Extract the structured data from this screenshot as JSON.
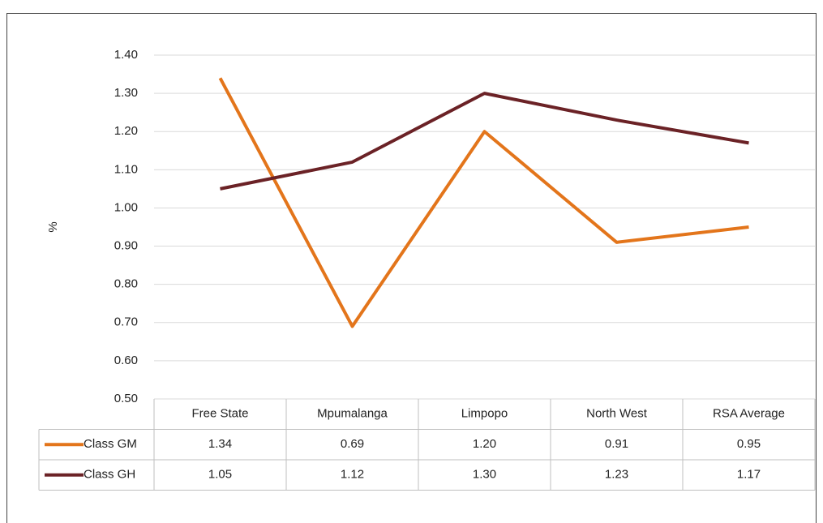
{
  "chart_data": {
    "type": "line",
    "ylabel": "%",
    "categories": [
      "Free State",
      "Mpumalanga",
      "Limpopo",
      "North West",
      "RSA Average"
    ],
    "series": [
      {
        "name": "Class GM",
        "color": "#e3751b",
        "values": [
          1.34,
          0.69,
          1.2,
          0.91,
          0.95
        ],
        "value_labels": [
          "1.34",
          "0.69",
          "1.20",
          "0.91",
          "0.95"
        ]
      },
      {
        "name": "Class GH",
        "color": "#6b2226",
        "values": [
          1.05,
          1.12,
          1.3,
          1.23,
          1.17
        ],
        "value_labels": [
          "1.05",
          "1.12",
          "1.30",
          "1.23",
          "1.17"
        ]
      }
    ],
    "ylim": [
      0.5,
      1.4
    ],
    "yticks": [
      {
        "value": 0.5,
        "label": "0.50"
      },
      {
        "value": 0.6,
        "label": "0.60"
      },
      {
        "value": 0.7,
        "label": "0.70"
      },
      {
        "value": 0.8,
        "label": "0.80"
      },
      {
        "value": 0.9,
        "label": "0.90"
      },
      {
        "value": 1.0,
        "label": "1.00"
      },
      {
        "value": 1.1,
        "label": "1.10"
      },
      {
        "value": 1.2,
        "label": "1.20"
      },
      {
        "value": 1.3,
        "label": "1.30"
      },
      {
        "value": 1.4,
        "label": "1.40"
      }
    ],
    "grid": true
  }
}
